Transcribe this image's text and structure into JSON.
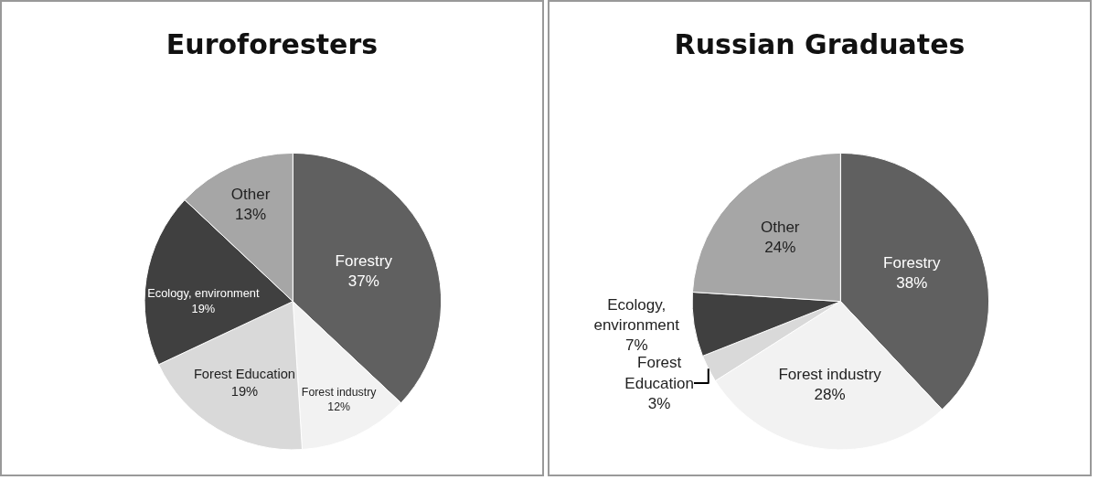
{
  "chart_data": [
    {
      "type": "pie",
      "title": "Euroforesters",
      "categories": [
        "Forestry",
        "Forest industry",
        "Forest Education",
        "Ecology, environment",
        "Other"
      ],
      "values": [
        37,
        12,
        19,
        19,
        13
      ],
      "value_labels": [
        "37%",
        "12%",
        "19%",
        "19%",
        "13%"
      ],
      "colors": [
        "#606060",
        "#f2f2f2",
        "#d9d9d9",
        "#404040",
        "#a6a6a6"
      ]
    },
    {
      "type": "pie",
      "title": "Russian Graduates",
      "categories": [
        "Forestry",
        "Forest industry",
        "Forest Education",
        "Ecology, environment",
        "Other"
      ],
      "values": [
        38,
        28,
        3,
        7,
        24
      ],
      "value_labels": [
        "38%",
        "28%",
        "3%",
        "7%",
        "24%"
      ],
      "colors": [
        "#606060",
        "#f2f2f2",
        "#d9d9d9",
        "#404040",
        "#a6a6a6"
      ]
    }
  ]
}
